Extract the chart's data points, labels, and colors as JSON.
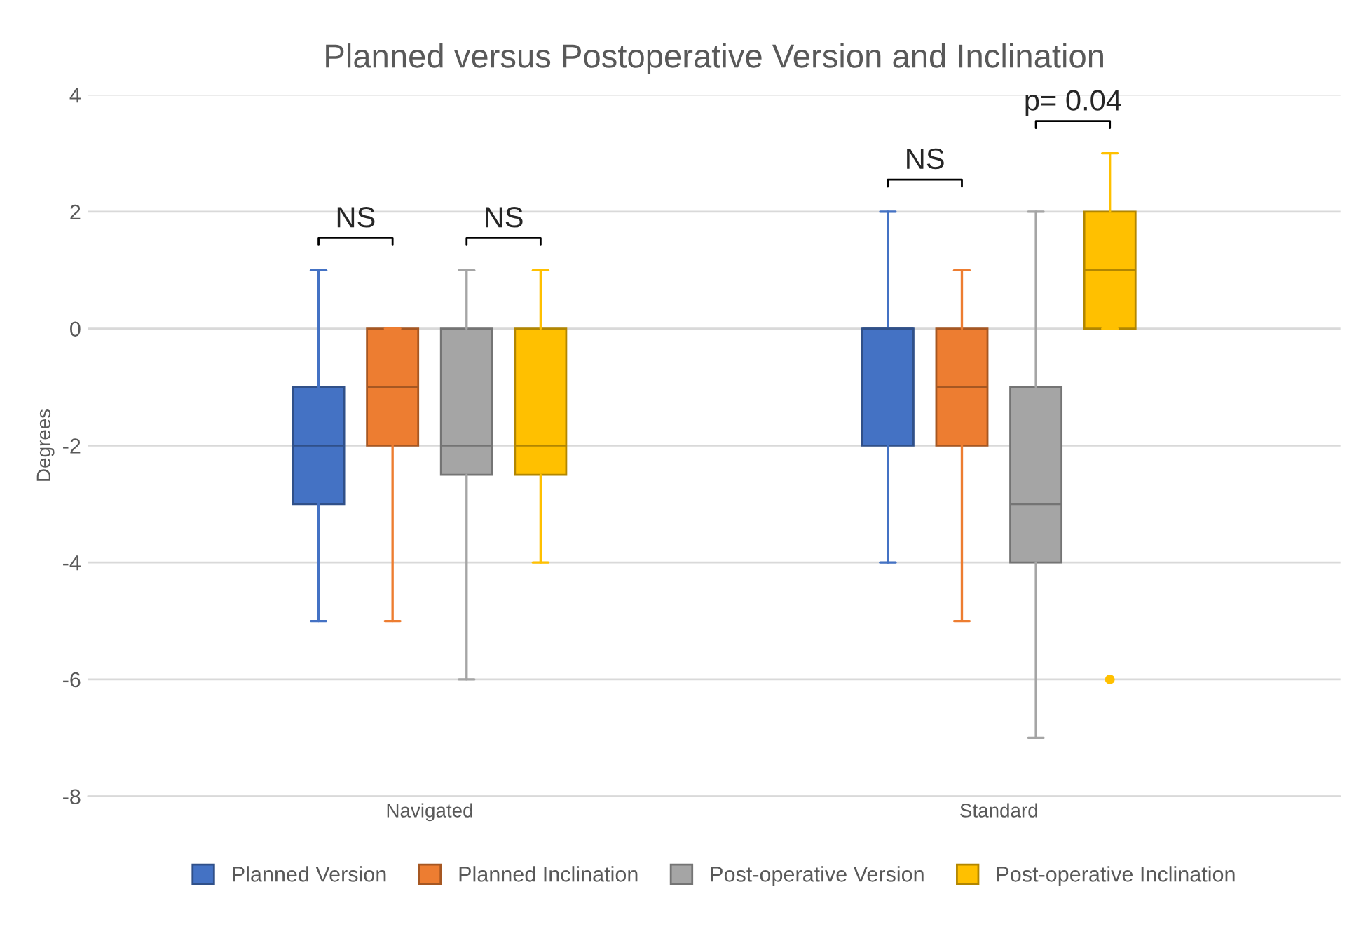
{
  "chart_data": {
    "type": "box",
    "title": "Planned versus Postoperative Version and Inclination",
    "ylabel": "Degrees",
    "categories": [
      "Navigated",
      "Standard"
    ],
    "series": [
      {
        "name": "Planned Version",
        "color": "#4472c4",
        "boxes": [
          {
            "low": -5,
            "q1": -3,
            "median": -2,
            "q3": -1,
            "high": 1
          },
          {
            "low": -4,
            "q1": -2,
            "median": 0,
            "q3": 0,
            "high": 2
          }
        ]
      },
      {
        "name": "Planned Inclination",
        "color": "#ed7d31",
        "boxes": [
          {
            "low": -5,
            "q1": -2,
            "median": -1,
            "q3": 0,
            "high": 0
          },
          {
            "low": -5,
            "q1": -2,
            "median": -1,
            "q3": 0,
            "high": 1
          }
        ]
      },
      {
        "name": "Post-operative Version",
        "color": "#a5a5a5",
        "boxes": [
          {
            "low": -6,
            "q1": -2.5,
            "median": -2,
            "q3": 0,
            "high": 1
          },
          {
            "low": -7,
            "q1": -4,
            "median": -3,
            "q3": -1,
            "high": 2
          }
        ]
      },
      {
        "name": "Post-operative Inclination",
        "color": "#ffc000",
        "boxes": [
          {
            "low": -4,
            "q1": -2.5,
            "median": -2,
            "q3": 0,
            "high": 1
          },
          {
            "low": 0,
            "q1": 0,
            "median": 1,
            "q3": 2,
            "high": 3,
            "outliers": [
              -6
            ]
          }
        ]
      }
    ],
    "ylim": [
      -8,
      4
    ],
    "yticks": [
      -8,
      -6,
      -4,
      -2,
      0,
      2,
      4
    ],
    "grid": "y",
    "legend": "bottom",
    "annotations": [
      "NS",
      "NS",
      "NS",
      "p= 0.04"
    ]
  }
}
